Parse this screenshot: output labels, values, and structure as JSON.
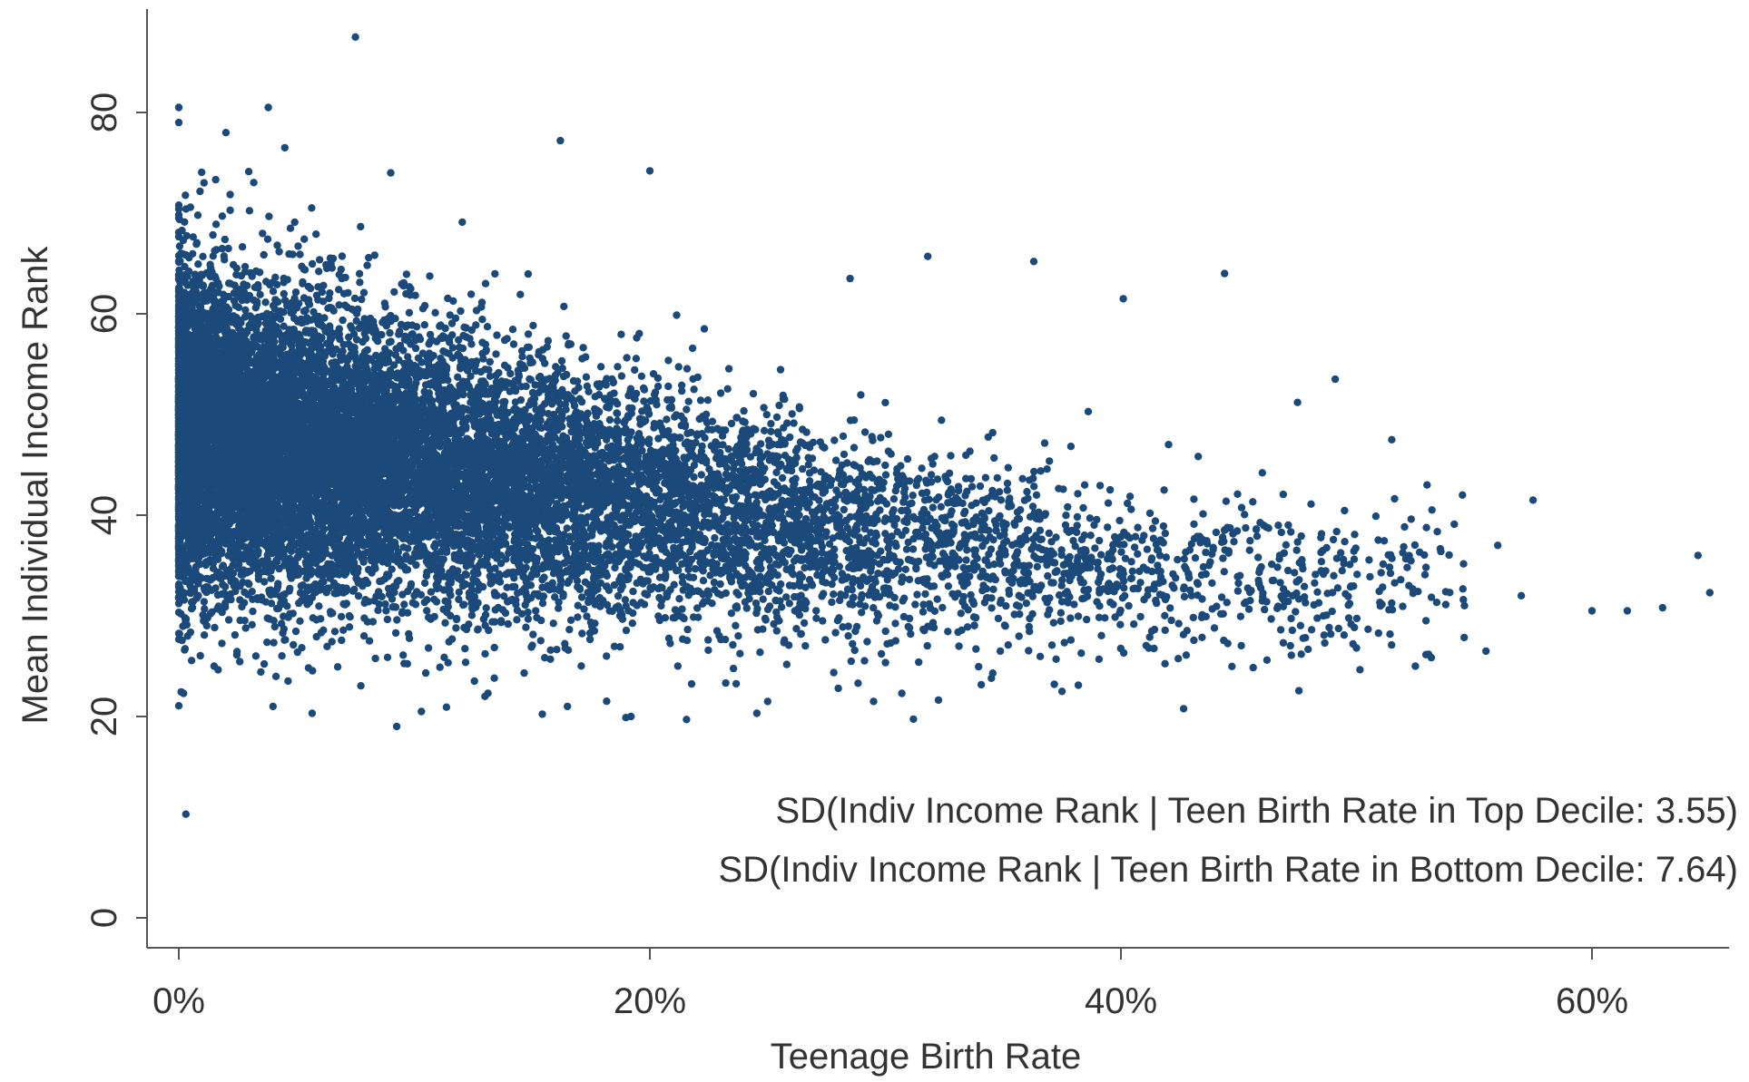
{
  "chart_data": {
    "type": "scatter",
    "title": "",
    "xlabel": "Teenage Birth Rate",
    "ylabel": "Mean Individual Income Rank",
    "x_unit": "percent",
    "xlim": [
      -3,
      66
    ],
    "ylim": [
      -3,
      90
    ],
    "x_ticks": [
      0,
      20,
      40,
      60
    ],
    "x_tick_labels": [
      "0%",
      "20%",
      "40%",
      "60%"
    ],
    "y_ticks": [
      0,
      20,
      40,
      60,
      80
    ],
    "y_tick_labels": [
      "0",
      "20",
      "40",
      "60",
      "80"
    ],
    "grid": false,
    "marker_color": "#1b4a7a",
    "annotations": [
      "SD(Indiv Income Rank | Teen Birth Rate in Top Decile: 3.55)",
      "SD(Indiv Income Rank | Teen Birth Rate in Bottom Decile: 7.64)"
    ],
    "cloud_trend": {
      "description": "dense cloud of several thousand points",
      "mean_line": [
        [
          0,
          48.5
        ],
        [
          10,
          45
        ],
        [
          20,
          41
        ],
        [
          30,
          38
        ],
        [
          40,
          35
        ],
        [
          50,
          33
        ]
      ],
      "spread_sd_at_low_rate": 7.64,
      "spread_sd_at_high_rate": 3.55
    },
    "outliers": [
      [
        7.5,
        87.5
      ],
      [
        0,
        80.5
      ],
      [
        0,
        79
      ],
      [
        3.8,
        80.5
      ],
      [
        0.3,
        10.3
      ],
      [
        16.2,
        77.2
      ],
      [
        20,
        74.2
      ],
      [
        9,
        74
      ],
      [
        2,
        78
      ],
      [
        4.5,
        76.5
      ],
      [
        28.5,
        63.5
      ],
      [
        31.8,
        65.7
      ],
      [
        36.3,
        65.2
      ],
      [
        44.4,
        64
      ],
      [
        40.1,
        61.5
      ],
      [
        47.5,
        51.2
      ],
      [
        49.1,
        53.5
      ],
      [
        51.5,
        47.5
      ],
      [
        53,
        43
      ],
      [
        54.5,
        42
      ],
      [
        56,
        37
      ],
      [
        57,
        32
      ],
      [
        57.5,
        41.5
      ],
      [
        60,
        30.5
      ],
      [
        61.5,
        30.5
      ],
      [
        63,
        30.8
      ],
      [
        64.5,
        36
      ],
      [
        65,
        32.3
      ],
      [
        55.5,
        26.5
      ],
      [
        52.5,
        25
      ],
      [
        0.2,
        22.3
      ],
      [
        1.5,
        25
      ],
      [
        4,
        21
      ],
      [
        10.3,
        20.5
      ],
      [
        13,
        22
      ],
      [
        16.5,
        21
      ],
      [
        19.2,
        20
      ],
      [
        25,
        21.5
      ],
      [
        28,
        22.8
      ],
      [
        29.5,
        21.5
      ],
      [
        34.5,
        23.8
      ],
      [
        37.5,
        22.5
      ],
      [
        46.2,
        25.6
      ],
      [
        50,
        26.8
      ]
    ]
  }
}
